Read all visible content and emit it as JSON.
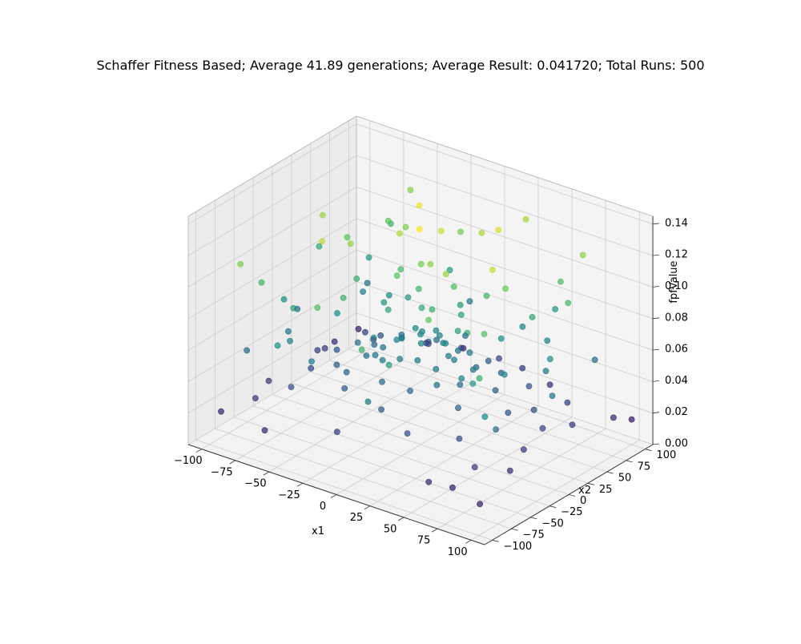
{
  "chart_data": {
    "type": "scatter",
    "projection": "3d",
    "title": "Schaffer Fitness Based; Average 41.89 generations; Average Result: 0.041720; Total Runs: 500",
    "xlabel": "x1",
    "ylabel": "x2",
    "zlabel": "fpfValue",
    "xlim": [
      -110,
      110
    ],
    "ylim": [
      -110,
      110
    ],
    "zlim": [
      0,
      0.145
    ],
    "x_ticks": [
      -100,
      -75,
      -50,
      -25,
      0,
      25,
      50,
      75,
      100
    ],
    "y_ticks": [
      -100,
      -75,
      -50,
      -25,
      0,
      25,
      50,
      75,
      100
    ],
    "z_ticks": [
      0.0,
      0.02,
      0.04,
      0.06,
      0.08,
      0.1,
      0.12,
      0.14
    ],
    "x_tick_labels": [
      "−100",
      "−75",
      "−50",
      "−25",
      "0",
      "25",
      "50",
      "75",
      "100"
    ],
    "y_tick_labels": [
      "−100",
      "−75",
      "−50",
      "−25",
      "0",
      "25",
      "50",
      "75",
      "100"
    ],
    "z_tick_labels": [
      "0.00",
      "0.02",
      "0.04",
      "0.06",
      "0.08",
      "0.10",
      "0.12",
      "0.14"
    ],
    "grid": true,
    "colormap": "viridis",
    "color_by": "z",
    "colormap_stops": [
      "#440154",
      "#3b528b",
      "#21918c",
      "#5ec962",
      "#fde725"
    ],
    "pane_color": "#f2f2f2",
    "grid_color": "#cccccc",
    "series": [
      {
        "points": [
          [
            0,
            0,
            0.07
          ],
          [
            5,
            -8,
            0.068
          ],
          [
            -6,
            4,
            0.071
          ],
          [
            10,
            12,
            0.064
          ],
          [
            -12,
            -10,
            0.066
          ],
          [
            3,
            15,
            0.069
          ],
          [
            -15,
            2,
            0.063
          ],
          [
            8,
            -18,
            0.061
          ],
          [
            18,
            5,
            0.06
          ],
          [
            -4,
            -20,
            0.059
          ],
          [
            20,
            -15,
            0.058
          ],
          [
            -22,
            14,
            0.057
          ],
          [
            0,
            25,
            0.062
          ],
          [
            25,
            0,
            0.061
          ],
          [
            -25,
            -5,
            0.056
          ],
          [
            12,
            28,
            0.055
          ],
          [
            -30,
            -18,
            0.053
          ],
          [
            30,
            20,
            0.052
          ],
          [
            -8,
            35,
            0.054
          ],
          [
            35,
            -10,
            0.051
          ],
          [
            -40,
            10,
            0.049
          ],
          [
            40,
            35,
            0.047
          ],
          [
            -35,
            -35,
            0.046
          ],
          [
            15,
            -40,
            0.05
          ],
          [
            -18,
            42,
            0.048
          ],
          [
            45,
            -30,
            0.045
          ],
          [
            -48,
            -25,
            0.044
          ],
          [
            50,
            10,
            0.046
          ],
          [
            -52,
            30,
            0.043
          ],
          [
            22,
            50,
            0.045
          ],
          [
            -28,
            -50,
            0.042
          ],
          [
            55,
            45,
            0.04
          ],
          [
            -58,
            50,
            0.038
          ],
          [
            60,
            -55,
            0.037
          ],
          [
            -62,
            -60,
            0.036
          ],
          [
            5,
            -60,
            0.041
          ],
          [
            -5,
            62,
            0.042
          ],
          [
            65,
            0,
            0.039
          ],
          [
            -65,
            5,
            0.04
          ],
          [
            70,
            25,
            0.035
          ],
          [
            -70,
            -20,
            0.034
          ],
          [
            30,
            -70,
            0.036
          ],
          [
            -35,
            72,
            0.033
          ],
          [
            75,
            60,
            0.031
          ],
          [
            -78,
            65,
            0.03
          ],
          [
            80,
            -70,
            0.029
          ],
          [
            -80,
            -75,
            0.028
          ],
          [
            85,
            10,
            0.032
          ],
          [
            -85,
            15,
            0.031
          ],
          [
            10,
            85,
            0.033
          ],
          [
            -12,
            -88,
            0.03
          ],
          [
            90,
            40,
            0.027
          ],
          [
            -90,
            -40,
            0.026
          ],
          [
            45,
            90,
            0.025
          ],
          [
            -48,
            92,
            0.024
          ],
          [
            92,
            -45,
            0.023
          ],
          [
            -95,
            55,
            0.022
          ],
          [
            95,
            85,
            0.02
          ],
          [
            -97,
            -90,
            0.019
          ],
          [
            98,
            -95,
            0.018
          ],
          [
            -100,
            95,
            0.017
          ],
          [
            100,
            100,
            0.016
          ],
          [
            60,
            -95,
            0.021
          ],
          [
            -60,
            -98,
            0.02
          ],
          [
            20,
            98,
            0.026
          ],
          [
            -25,
            100,
            0.025
          ],
          [
            72,
            -85,
            0.018
          ],
          [
            -88,
            30,
            0.027
          ],
          [
            88,
            -20,
            0.028
          ],
          [
            -3,
            -45,
            0.052
          ],
          [
            38,
            2,
            0.058
          ],
          [
            -42,
            -8,
            0.055
          ],
          [
            6,
            48,
            0.057
          ],
          [
            -10,
            -32,
            0.06
          ],
          [
            28,
            -28,
            0.054
          ],
          [
            -30,
            28,
            0.053
          ],
          [
            14,
            8,
            0.066
          ],
          [
            -9,
            18,
            0.064
          ],
          [
            24,
            22,
            0.059
          ],
          [
            -20,
            -24,
            0.058
          ],
          [
            2,
            -2,
            0.088
          ],
          [
            -7,
            10,
            0.094
          ],
          [
            12,
            -6,
            0.091
          ],
          [
            -16,
            -14,
            0.085
          ],
          [
            20,
            18,
            0.083
          ],
          [
            -24,
            26,
            0.079
          ],
          [
            30,
            -4,
            0.082
          ],
          [
            -34,
            12,
            0.077
          ],
          [
            8,
            38,
            0.08
          ],
          [
            -12,
            -40,
            0.076
          ],
          [
            44,
            28,
            0.072
          ],
          [
            -46,
            40,
            0.07
          ],
          [
            52,
            -38,
            0.068
          ],
          [
            -55,
            -12,
            0.071
          ],
          [
            60,
            60,
            0.066
          ],
          [
            -64,
            -58,
            0.064
          ],
          [
            68,
            -10,
            0.067
          ],
          [
            -70,
            48,
            0.063
          ],
          [
            36,
            70,
            0.065
          ],
          [
            -40,
            -72,
            0.062
          ],
          [
            76,
            30,
            0.06
          ],
          [
            -80,
            -32,
            0.058
          ],
          [
            84,
            80,
            0.055
          ],
          [
            -86,
            82,
            0.054
          ],
          [
            90,
            -60,
            0.053
          ],
          [
            -92,
            -65,
            0.052
          ],
          [
            95,
            5,
            0.057
          ],
          [
            -96,
            8,
            0.056
          ],
          [
            15,
            -95,
            0.059
          ],
          [
            -18,
            96,
            0.058
          ],
          [
            -3,
            6,
            0.112
          ],
          [
            9,
            -3,
            0.118
          ],
          [
            -14,
            -6,
            0.105
          ],
          [
            18,
            12,
            0.102
          ],
          [
            -26,
            20,
            0.098
          ],
          [
            32,
            30,
            0.095
          ],
          [
            -38,
            -34,
            0.092
          ],
          [
            46,
            -20,
            0.09
          ],
          [
            -52,
            8,
            0.088
          ],
          [
            58,
            44,
            0.085
          ],
          [
            -66,
            -50,
            0.082
          ],
          [
            74,
            -62,
            0.078
          ],
          [
            -78,
            70,
            0.076
          ],
          [
            86,
            18,
            0.074
          ],
          [
            -90,
            -20,
            0.072
          ],
          [
            22,
            -80,
            0.08
          ],
          [
            -26,
            84,
            0.079
          ],
          [
            50,
            88,
            0.075
          ],
          [
            -55,
            -90,
            0.073
          ],
          [
            96,
            -85,
            0.07
          ],
          [
            4,
            20,
            0.131
          ],
          [
            -20,
            8,
            0.126
          ],
          [
            28,
            -16,
            0.121
          ],
          [
            -36,
            44,
            0.115
          ],
          [
            54,
            16,
            0.11
          ],
          [
            -68,
            24,
            0.105
          ],
          [
            70,
            -40,
            0.102
          ],
          [
            -84,
            -60,
            0.096
          ],
          [
            40,
            -60,
            0.108
          ],
          [
            -10,
            70,
            0.112
          ],
          [
            62,
            74,
            0.1
          ],
          [
            -72,
            88,
            0.094
          ],
          [
            88,
            -78,
            0.09
          ],
          [
            -98,
            40,
            0.086
          ],
          [
            12,
            -98,
            0.092
          ],
          [
            -44,
            -14,
            0.119
          ],
          [
            16,
            52,
            0.124
          ],
          [
            -58,
            60,
            0.108
          ],
          [
            80,
            52,
            0.098
          ],
          [
            -30,
            -82,
            0.102
          ],
          [
            6,
            -12,
            0.142
          ],
          [
            -18,
            30,
            0.138
          ],
          [
            34,
            42,
            0.134
          ],
          [
            -48,
            -44,
            0.128
          ],
          [
            58,
            -8,
            0.13
          ],
          [
            -76,
            6,
            0.122
          ],
          [
            74,
            82,
            0.118
          ],
          [
            -86,
            -84,
            0.114
          ],
          [
            26,
            92,
            0.124
          ],
          [
            -62,
            96,
            0.116
          ]
        ]
      }
    ]
  }
}
